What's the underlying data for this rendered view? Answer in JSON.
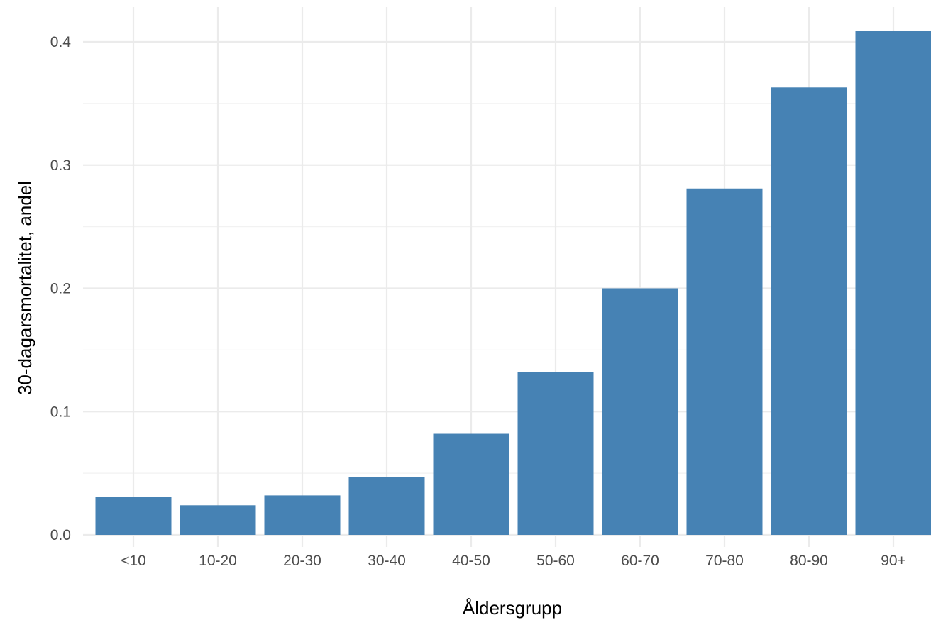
{
  "colors": {
    "bar": "#4682B4",
    "grid_major": "#EBEBEB",
    "grid_minor": "#F2F2F2",
    "background": "#FFFFFF"
  },
  "chart_data": {
    "type": "bar",
    "title": "",
    "xlabel": "Åldersgrupp",
    "ylabel": "30-dagarsmortalitet, andel",
    "categories": [
      "<10",
      "10-20",
      "20-30",
      "30-40",
      "40-50",
      "50-60",
      "60-70",
      "70-80",
      "80-90",
      "90+"
    ],
    "values": [
      0.031,
      0.024,
      0.032,
      0.047,
      0.082,
      0.132,
      0.2,
      0.281,
      0.363,
      0.409
    ],
    "yticks": [
      0.0,
      0.1,
      0.2,
      0.3,
      0.4
    ],
    "ytick_labels": [
      "0.0",
      "0.1",
      "0.2",
      "0.3",
      "0.4"
    ],
    "ylim": [
      0,
      0.4
    ],
    "grid": true,
    "legend": "none"
  }
}
